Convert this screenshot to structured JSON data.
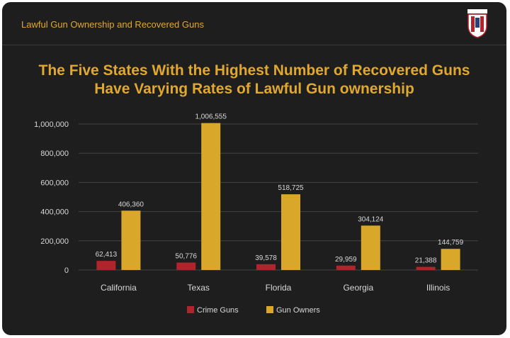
{
  "header": {
    "title": "Lawful Gun Ownership and Recovered Guns"
  },
  "colors": {
    "background": "#1e1e1e",
    "accent": "#e0a82e",
    "crime_guns": "#b0242b",
    "gun_owners": "#d9a82a",
    "gridline": "#444444"
  },
  "logo": {
    "icon": "shield-seal-icon"
  },
  "chart_data": {
    "type": "bar",
    "title_lines": [
      "The Five States With the Highest Number of Recovered Guns",
      "Have Varying Rates of Lawful Gun ownership"
    ],
    "categories": [
      "California",
      "Texas",
      "Florida",
      "Georgia",
      "Illinois"
    ],
    "series": [
      {
        "name": "Crime Guns",
        "values": [
          62413,
          50776,
          39578,
          29959,
          21388
        ],
        "labels": [
          "62,413",
          "50,776",
          "39,578",
          "29,959",
          "21,388"
        ]
      },
      {
        "name": "Gun Owners",
        "values": [
          406360,
          1006555,
          518725,
          304124,
          144759
        ],
        "labels": [
          "406,360",
          "1,006,555",
          "518,725",
          "304,124",
          "144,759"
        ]
      }
    ],
    "yticks": [
      0,
      200000,
      400000,
      600000,
      800000,
      1000000
    ],
    "ytick_labels": [
      "0",
      "200,000",
      "400,000",
      "600,000",
      "800,000",
      "1,000,000"
    ],
    "ylim": [
      0,
      1000000
    ],
    "grid": true,
    "legend_position": "bottom-center"
  }
}
